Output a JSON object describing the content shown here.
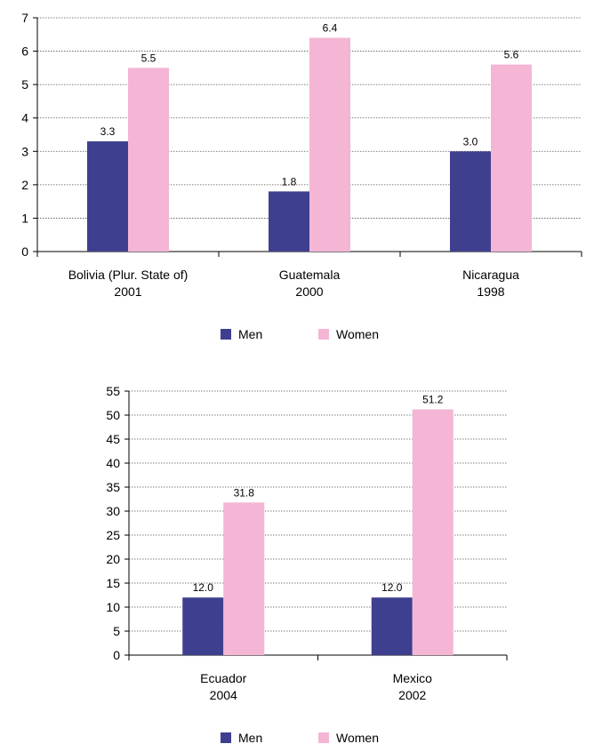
{
  "chart_data": [
    {
      "type": "bar",
      "categories": [
        [
          "Bolivia (Plur. State of)",
          "2001"
        ],
        [
          "Guatemala",
          "2000"
        ],
        [
          "Nicaragua",
          "1998"
        ]
      ],
      "series": [
        {
          "name": "Men",
          "values": [
            3.3,
            1.8,
            3.0
          ],
          "labels": [
            "3.3",
            "1.8",
            "3.0"
          ],
          "color": "#3f3f8f"
        },
        {
          "name": "Women",
          "values": [
            5.5,
            6.4,
            5.6
          ],
          "labels": [
            "5.5",
            "6.4",
            "5.6"
          ],
          "color": "#f4b6d4"
        }
      ],
      "ylim": [
        0,
        7
      ],
      "yticks": [
        0,
        1,
        2,
        3,
        4,
        5,
        6,
        7
      ],
      "grid": true,
      "legend": "bottom"
    },
    {
      "type": "bar",
      "categories": [
        [
          "Ecuador",
          "2004"
        ],
        [
          "Mexico",
          "2002"
        ]
      ],
      "series": [
        {
          "name": "Men",
          "values": [
            12.0,
            12.0
          ],
          "labels": [
            "12.0",
            "12.0"
          ],
          "color": "#3f3f8f"
        },
        {
          "name": "Women",
          "values": [
            31.8,
            51.2
          ],
          "labels": [
            "31.8",
            "51.2"
          ],
          "color": "#f4b6d4"
        }
      ],
      "ylim": [
        0,
        55
      ],
      "yticks": [
        0,
        5,
        10,
        15,
        20,
        25,
        30,
        35,
        40,
        45,
        50,
        55
      ],
      "grid": true,
      "legend": "bottom"
    }
  ]
}
